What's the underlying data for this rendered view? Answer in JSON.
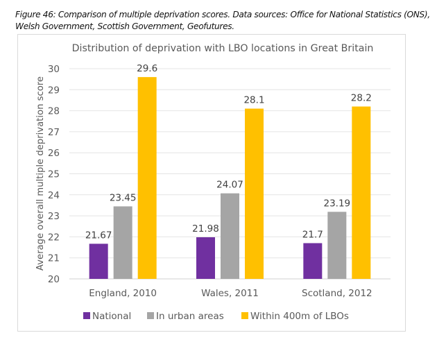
{
  "caption": {
    "line1": "Figure 46: Comparison of multiple deprivation scores. Data sources: Office for National Statistics (ONS),",
    "line2": "Welsh Government, Scottish Government, Geofutures."
  },
  "chart_data": {
    "type": "bar",
    "title": "Distribution of deprivation with LBO locations in Great Britain",
    "xlabel": "",
    "ylabel": "Average overall multiple deprivation score",
    "ylim": [
      20,
      30
    ],
    "yticks": [
      20,
      21,
      22,
      23,
      24,
      25,
      26,
      27,
      28,
      29,
      30
    ],
    "grid": true,
    "legend_position": "bottom",
    "categories": [
      "England, 2010",
      "Wales, 2011",
      "Scotland, 2012"
    ],
    "series": [
      {
        "name": "National",
        "color": "#7030a0",
        "values": [
          21.67,
          21.98,
          21.7
        ],
        "labels": [
          "21.67",
          "21.98",
          "21.7"
        ]
      },
      {
        "name": "In urban areas",
        "color": "#a5a5a5",
        "values": [
          23.45,
          24.07,
          23.19
        ],
        "labels": [
          "23.45",
          "24.07",
          "23.19"
        ]
      },
      {
        "name": "Within 400m of LBOs",
        "color": "#ffc000",
        "values": [
          29.6,
          28.1,
          28.2
        ],
        "labels": [
          "29.6",
          "28.1",
          "28.2"
        ]
      }
    ]
  }
}
